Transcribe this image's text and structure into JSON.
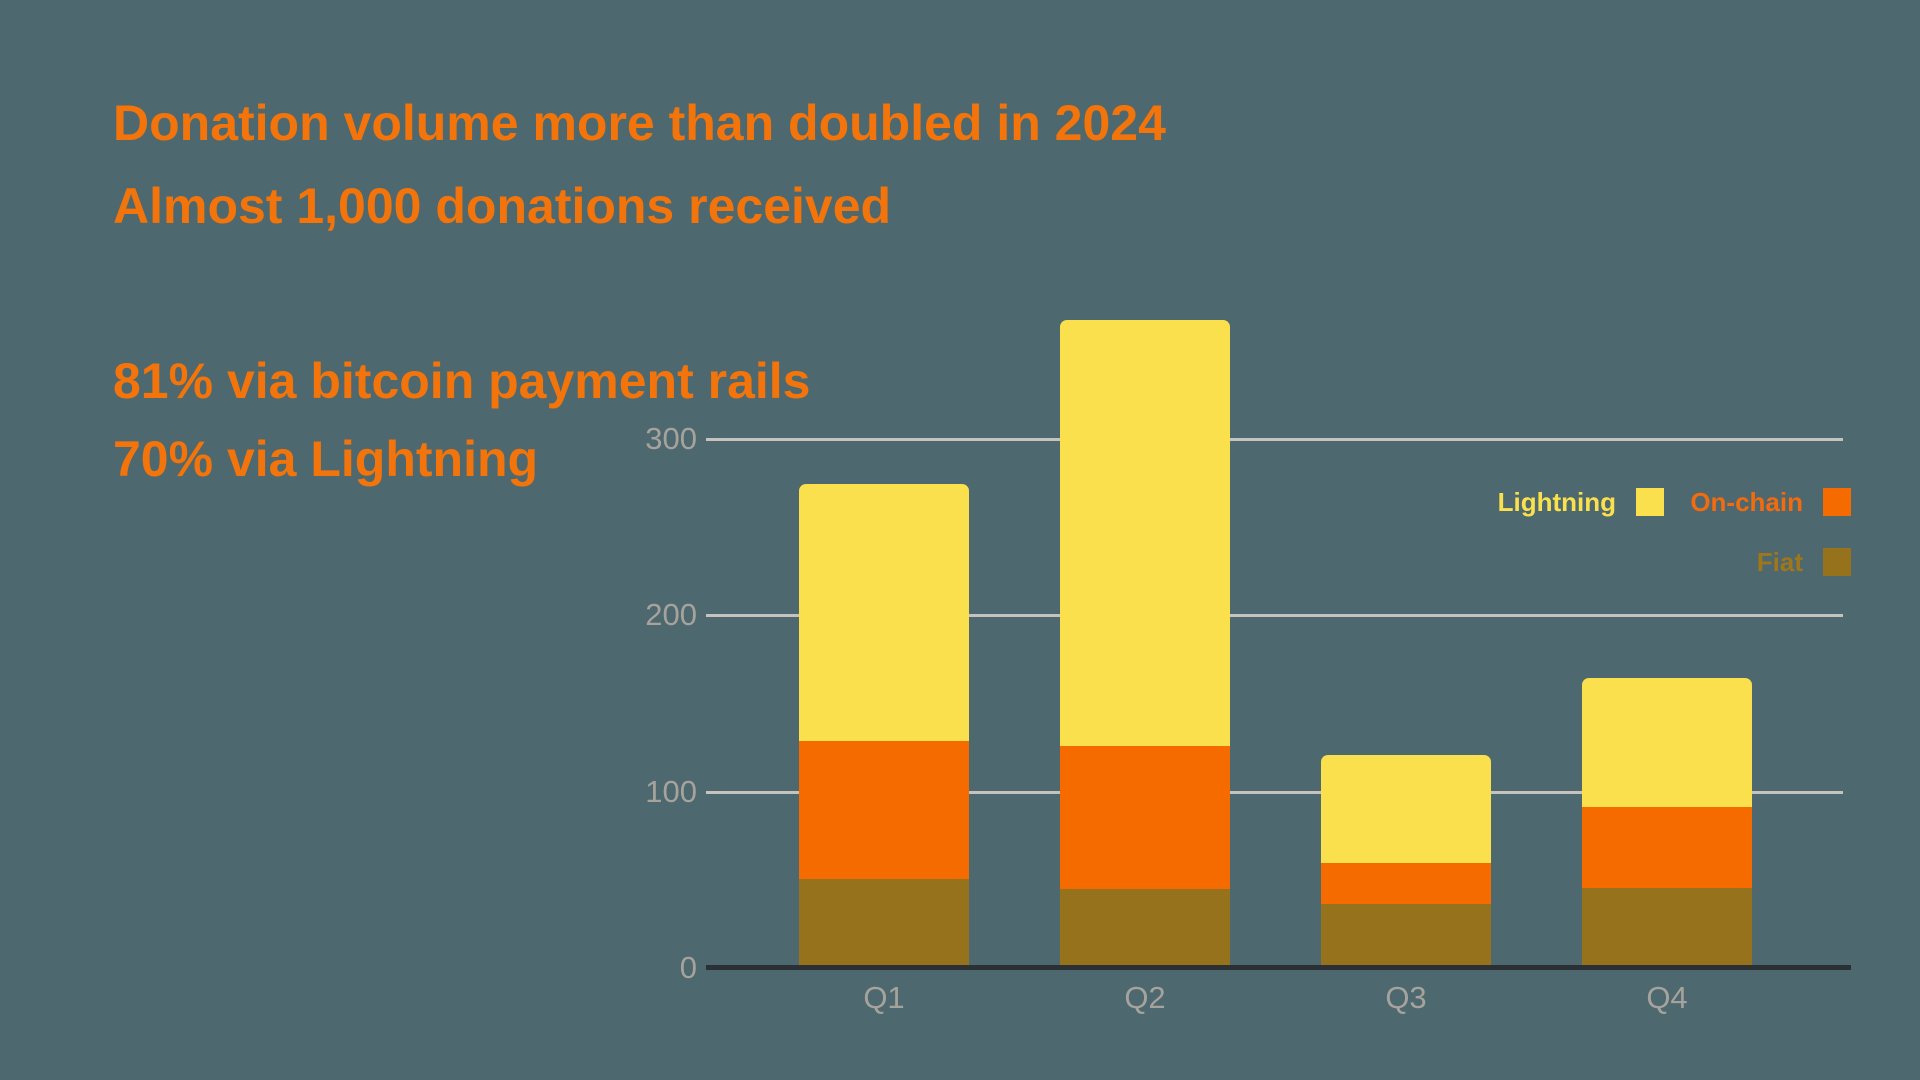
{
  "headline": {
    "line1": "Donation volume more than doubled in 2024",
    "line2": "Almost 1,000 donations received"
  },
  "stats": {
    "line1": "81% via bitcoin payment rails",
    "line2": "70% via Lightning"
  },
  "chart_data": {
    "type": "bar",
    "stacked": true,
    "title": "",
    "xlabel": "",
    "ylabel": "",
    "categories": [
      "Q1",
      "Q2",
      "Q3",
      "Q4"
    ],
    "series": [
      {
        "name": "Lightning",
        "color": "#FAE04C",
        "label_color": "#FAE04C",
        "values": [
          146,
          242,
          61,
          73
        ]
      },
      {
        "name": "On-chain",
        "color": "#F56B00",
        "label_color": "#F26B0E",
        "values": [
          78,
          81,
          23,
          46
        ]
      },
      {
        "name": "Fiat",
        "color": "#97721D",
        "label_color": "#A0761B",
        "values": [
          50,
          44,
          36,
          45
        ]
      }
    ],
    "totals": [
      274,
      367,
      120,
      164
    ],
    "yticks": [
      0,
      100,
      200,
      300
    ],
    "ylim": [
      0,
      380
    ],
    "grid": true,
    "legend_position": "upper-right"
  },
  "colors": {
    "background": "#4D686E",
    "heading": "#F2740B",
    "gridline": "#C6C3BE",
    "axis": "#2B3034",
    "tick_text": "#A5A39C"
  }
}
